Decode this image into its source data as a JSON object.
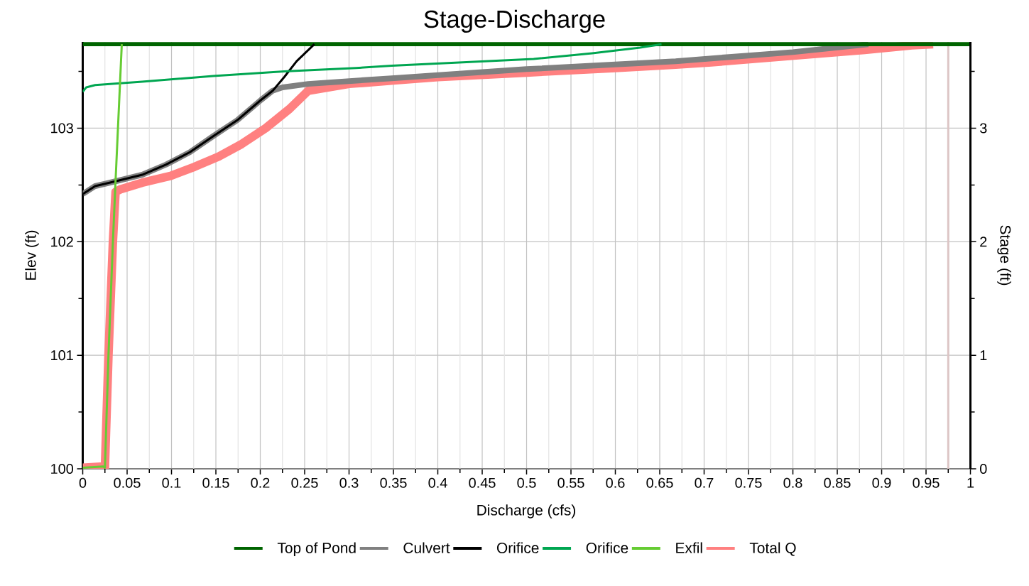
{
  "chart_data": {
    "type": "line",
    "title": "Stage-Discharge",
    "xlabel": "Discharge (cfs)",
    "ylabel": "Elev (ft)",
    "y2label": "Stage (ft)",
    "xlim": [
      0,
      1
    ],
    "ylim": [
      100,
      103.76
    ],
    "y2lim": [
      0,
      3.76
    ],
    "xticks": [
      0,
      {
        "value": 0.025,
        "label": null
      },
      0.05,
      {
        "value": 0.075,
        "label": null
      },
      0.1,
      {
        "value": 0.125,
        "label": null
      },
      0.15,
      {
        "value": 0.175,
        "label": null
      },
      0.2,
      {
        "value": 0.225,
        "label": null
      },
      0.25,
      {
        "value": 0.275,
        "label": null
      },
      0.3,
      {
        "value": 0.325,
        "label": null
      },
      0.35,
      {
        "value": 0.375,
        "label": null
      },
      0.4,
      {
        "value": 0.425,
        "label": null
      },
      0.45,
      {
        "value": 0.475,
        "label": null
      },
      0.5,
      {
        "value": 0.525,
        "label": null
      },
      0.55,
      {
        "value": 0.575,
        "label": null
      },
      0.6,
      {
        "value": 0.625,
        "label": null
      },
      0.65,
      {
        "value": 0.675,
        "label": null
      },
      0.7,
      {
        "value": 0.725,
        "label": null
      },
      0.75,
      {
        "value": 0.775,
        "label": null
      },
      0.8,
      {
        "value": 0.825,
        "label": null
      },
      0.85,
      {
        "value": 0.875,
        "label": null
      },
      0.9,
      {
        "value": 0.925,
        "label": null
      },
      0.95,
      {
        "value": 0.975,
        "label": null
      },
      1
    ],
    "yticks": [
      100,
      {
        "value": 100.5,
        "label": null
      },
      101,
      {
        "value": 101.5,
        "label": null
      },
      102,
      {
        "value": 102.5,
        "label": null
      },
      103,
      {
        "value": 103.5,
        "label": null
      }
    ],
    "y2ticks": [
      0,
      {
        "value": 0.5,
        "label": null
      },
      1,
      {
        "value": 1.5,
        "label": null
      },
      2,
      {
        "value": 2.5,
        "label": null
      },
      3,
      {
        "value": 3.5,
        "label": null
      }
    ],
    "grid": true,
    "legend": "bottom",
    "ref_lines": [
      {
        "axis": "x",
        "value": 0.975,
        "color": "#dcc5c5"
      }
    ],
    "series": [
      {
        "name": "Top of Pond",
        "color": "#006400",
        "x": [
          0,
          1
        ],
        "values": [
          103.74,
          103.74
        ]
      },
      {
        "name": "Culvert",
        "color": "#808080",
        "x": [
          0,
          0.014,
          0.041,
          0.067,
          0.094,
          0.121,
          0.147,
          0.174,
          0.201,
          0.214,
          0.225,
          0.254,
          0.348,
          0.5,
          0.668,
          0.75,
          0.8,
          0.885
        ],
        "values": [
          102.42,
          102.49,
          102.54,
          102.59,
          102.68,
          102.79,
          102.93,
          103.07,
          103.25,
          103.33,
          103.36,
          103.39,
          103.44,
          103.52,
          103.59,
          103.64,
          103.67,
          103.74
        ]
      },
      {
        "name": "Orifice",
        "color": "#000000",
        "x": [
          0,
          0.014,
          0.041,
          0.067,
          0.094,
          0.121,
          0.147,
          0.174,
          0.201,
          0.214,
          0.227,
          0.241,
          0.261
        ],
        "values": [
          102.42,
          102.49,
          102.54,
          102.59,
          102.68,
          102.79,
          102.93,
          103.07,
          103.25,
          103.33,
          103.45,
          103.59,
          103.74
        ]
      },
      {
        "name": "Orifice",
        "color": "#00a651",
        "x": [
          0,
          0.004,
          0.014,
          0.067,
          0.147,
          0.227,
          0.308,
          0.348,
          0.428,
          0.508,
          0.574,
          0.628,
          0.652
        ],
        "values": [
          103.32,
          103.36,
          103.38,
          103.41,
          103.46,
          103.5,
          103.53,
          103.55,
          103.58,
          103.61,
          103.66,
          103.71,
          103.74
        ]
      },
      {
        "name": "Exfil",
        "color": "#66cc33",
        "x": [
          0,
          0.023,
          0.025,
          0.029,
          0.034,
          0.037,
          0.044
        ],
        "values": [
          100.01,
          100.02,
          100.01,
          101,
          102,
          102.54,
          103.74
        ]
      },
      {
        "name": "Total Q",
        "color": "#ff8080",
        "x": [
          0,
          0.023,
          0.025,
          0.029,
          0.034,
          0.037,
          0.042,
          0.067,
          0.099,
          0.126,
          0.153,
          0.179,
          0.206,
          0.233,
          0.254,
          0.3,
          0.35,
          0.4,
          0.5,
          0.6,
          0.668,
          0.708,
          0.801,
          0.881,
          0.934,
          0.958
        ],
        "values": [
          100.01,
          100.02,
          100.01,
          101,
          102,
          102.44,
          102.46,
          102.52,
          102.58,
          102.66,
          102.75,
          102.86,
          103,
          103.17,
          103.33,
          103.39,
          103.42,
          103.45,
          103.49,
          103.53,
          103.56,
          103.58,
          103.64,
          103.69,
          103.73,
          103.74
        ]
      }
    ]
  }
}
